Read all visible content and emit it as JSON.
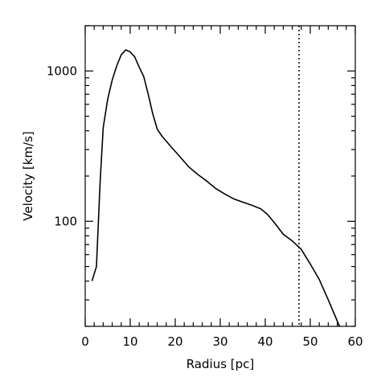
{
  "chart_data": {
    "type": "line",
    "title": "",
    "xlabel": "Radius [pc]",
    "ylabel": "Velocity [km/s]",
    "xlim": [
      0,
      60
    ],
    "ylim": [
      20,
      2000
    ],
    "yscale": "log",
    "grid": false,
    "x_ticks": [
      0,
      10,
      20,
      30,
      40,
      50,
      60
    ],
    "x_tick_labels": [
      "0",
      "10",
      "20",
      "30",
      "40",
      "50",
      "60"
    ],
    "x_minor_step": 2,
    "y_ticks": [
      100,
      1000
    ],
    "y_tick_labels": [
      "100",
      "1000"
    ],
    "series": [
      {
        "x": [
          1.5,
          2.5,
          3.3,
          4.0,
          5.0,
          6.0,
          7.0,
          8.0,
          9.0,
          10.0,
          11.0,
          12.0,
          13.0,
          14.0,
          15.0,
          16.0,
          17.0,
          19.0,
          21.0,
          23.0,
          25.0,
          27.0,
          29.0,
          31.0,
          33.0,
          35.0,
          37.0,
          39.0,
          40.5,
          42.0,
          44.0,
          46.0,
          48.0,
          50.0,
          52.0,
          54.0,
          56.5
        ],
        "y": [
          40,
          50,
          180,
          420,
          650,
          870,
          1080,
          1280,
          1380,
          1340,
          1240,
          1060,
          920,
          700,
          520,
          410,
          370,
          315,
          270,
          230,
          205,
          185,
          165,
          152,
          141,
          134,
          128,
          121,
          111,
          98,
          82,
          74,
          65,
          52,
          41,
          30,
          20
        ]
      }
    ],
    "reference_line": {
      "orientation": "vertical",
      "x": 47.5,
      "style": "dotted"
    }
  }
}
